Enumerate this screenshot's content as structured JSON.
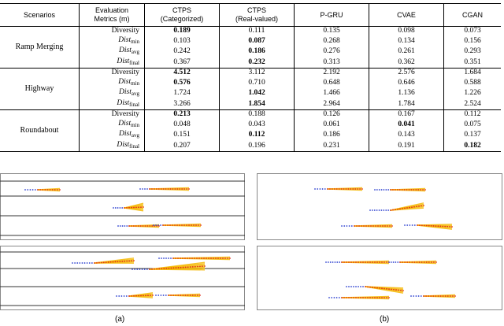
{
  "table": {
    "headers": {
      "scenarios": "Scenarios",
      "metrics_line1": "Evaluation",
      "metrics_line2": "Metrics (m)",
      "ctps_cat_line1": "CTPS",
      "ctps_cat_line2": "(Categorized)",
      "ctps_real_line1": "CTPS",
      "ctps_real_line2": "(Real-valued)",
      "pgru": "P-GRU",
      "cvae": "CVAE",
      "cgan": "CGAN"
    },
    "metrics": {
      "diversity": "Diversity",
      "dist_base": "Dist",
      "min": "min",
      "avg": "avg",
      "final": "final"
    },
    "groups": [
      {
        "scenario": "Ramp Merging",
        "rows": [
          {
            "ctps_cat": "0.189",
            "ctps_real": "0.111",
            "pgru": "0.135",
            "cvae": "0.098",
            "cgan": "0.073"
          },
          {
            "ctps_cat": "0.103",
            "ctps_real": "0.087",
            "pgru": "0.268",
            "cvae": "0.134",
            "cgan": "0.156"
          },
          {
            "ctps_cat": "0.242",
            "ctps_real": "0.186",
            "pgru": "0.276",
            "cvae": "0.261",
            "cgan": "0.293"
          },
          {
            "ctps_cat": "0.367",
            "ctps_real": "0.232",
            "pgru": "0.313",
            "cvae": "0.362",
            "cgan": "0.351"
          }
        ]
      },
      {
        "scenario": "Highway",
        "rows": [
          {
            "ctps_cat": "4.512",
            "ctps_real": "3.112",
            "pgru": "2.192",
            "cvae": "2.576",
            "cgan": "1.684"
          },
          {
            "ctps_cat": "0.576",
            "ctps_real": "0.710",
            "pgru": "0.648",
            "cvae": "0.646",
            "cgan": "0.588"
          },
          {
            "ctps_cat": "1.724",
            "ctps_real": "1.042",
            "pgru": "1.466",
            "cvae": "1.136",
            "cgan": "1.226"
          },
          {
            "ctps_cat": "3.266",
            "ctps_real": "1.854",
            "pgru": "2.964",
            "cvae": "1.784",
            "cgan": "2.524"
          }
        ]
      },
      {
        "scenario": "Roundabout",
        "rows": [
          {
            "ctps_cat": "0.213",
            "ctps_real": "0.188",
            "pgru": "0.126",
            "cvae": "0.167",
            "cgan": "0.112"
          },
          {
            "ctps_cat": "0.048",
            "ctps_real": "0.043",
            "pgru": "0.061",
            "cvae": "0.041",
            "cgan": "0.075"
          },
          {
            "ctps_cat": "0.151",
            "ctps_real": "0.112",
            "pgru": "0.186",
            "cvae": "0.143",
            "cgan": "0.137"
          },
          {
            "ctps_cat": "0.207",
            "ctps_real": "0.196",
            "pgru": "0.231",
            "cvae": "0.191",
            "cgan": "0.182"
          }
        ]
      }
    ]
  },
  "figure": {
    "label_a": "(a)",
    "label_b": "(b)"
  },
  "colors": {
    "history": "#2b3fcf",
    "ground_truth": "#e0301e",
    "prediction": "#f5b800",
    "lane": "#333333",
    "border": "#888888"
  }
}
